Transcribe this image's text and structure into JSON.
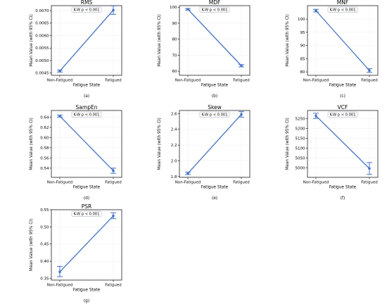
{
  "chart_data": [
    {
      "type": "line",
      "caption": "(a)",
      "title": "RMS",
      "xlabel": "Fatigue State",
      "ylabel": "Mean Value (with 95% CI)",
      "annotation": "K-W p < 0.001",
      "categories": [
        "Non-Fatigued",
        "Fatigued"
      ],
      "values": [
        0.00458,
        0.00702
      ],
      "ci_low": [
        0.00454,
        0.00685
      ],
      "ci_high": [
        0.00462,
        0.00719
      ],
      "ylim": [
        0.00441,
        0.0072
      ],
      "yticks": [
        0.0045,
        0.005,
        0.0055,
        0.006,
        0.0065,
        0.007
      ],
      "ytick_labels": [
        "0.0045",
        "0.0050",
        "0.0055",
        "0.0060",
        "0.0065",
        "0.0070"
      ],
      "grid": true
    },
    {
      "type": "line",
      "caption": "(b)",
      "title": "MDF",
      "xlabel": "Fatigue State",
      "ylabel": "Mean Value (with 95% CI)",
      "annotation": "K-W p < 0.001",
      "categories": [
        "Non-Fatigued",
        "Fatigued"
      ],
      "values": [
        98.7,
        63.4
      ],
      "ci_low": [
        98.2,
        62.7
      ],
      "ci_high": [
        99.2,
        64.1
      ],
      "ylim": [
        57.4,
        101
      ],
      "yticks": [
        60,
        70,
        80,
        90,
        100
      ],
      "ytick_labels": [
        "60",
        "70",
        "80",
        "90",
        "100"
      ],
      "grid": true
    },
    {
      "type": "line",
      "caption": "(c)",
      "title": "MNF",
      "xlabel": "Fatigue State",
      "ylabel": "Mean Value (with 95% CI)",
      "annotation": "K-W p < 0.001",
      "categories": [
        "Non-Fatigued",
        "Fatigued"
      ],
      "values": [
        103.2,
        80.5
      ],
      "ci_low": [
        102.7,
        79.8
      ],
      "ci_high": [
        103.7,
        81.2
      ],
      "ylim": [
        78.7,
        105.1
      ],
      "yticks": [
        80,
        85,
        90,
        95,
        100
      ],
      "ytick_labels": [
        "80",
        "85",
        "90",
        "95",
        "100"
      ],
      "grid": true
    },
    {
      "type": "line",
      "caption": "(d)",
      "title": "SampEn",
      "xlabel": "Fatigue State",
      "ylabel": "Mean Value (with 95% CI)",
      "annotation": "K-W p < 0.001",
      "categories": [
        "Non-Fatigued",
        "Fatigued"
      ],
      "values": [
        0.642,
        0.535
      ],
      "ci_low": [
        0.64,
        0.53
      ],
      "ci_high": [
        0.644,
        0.54
      ],
      "ylim": [
        0.522,
        0.653
      ],
      "yticks": [
        0.54,
        0.56,
        0.58,
        0.6,
        0.62,
        0.64
      ],
      "ytick_labels": [
        "0.54",
        "0.56",
        "0.58",
        "0.60",
        "0.62",
        "0.64"
      ],
      "grid": true
    },
    {
      "type": "line",
      "caption": "(e)",
      "title": "Skew",
      "xlabel": "Fatigue State",
      "ylabel": "Mean Value (with 95% CI)",
      "annotation": "K-W p < 0.001",
      "categories": [
        "Non-Fatigued",
        "Fatigued"
      ],
      "values": [
        1.84,
        2.59
      ],
      "ci_low": [
        1.825,
        2.555
      ],
      "ci_high": [
        1.855,
        2.625
      ],
      "ylim": [
        1.79,
        2.64
      ],
      "yticks": [
        1.8,
        2.0,
        2.2,
        2.4,
        2.6
      ],
      "ytick_labels": [
        "1.8",
        "2.0",
        "2.2",
        "2.4",
        "2.6"
      ],
      "grid": true
    },
    {
      "type": "line",
      "caption": "(f)",
      "title": "VCF",
      "xlabel": "Fatigue State",
      "ylabel": "Mean Value (with 95% CI)",
      "annotation": "K-W p < 0.001",
      "categories": [
        "Non-Fatigued",
        "Fatigued"
      ],
      "values": [
        5265,
        4997
      ],
      "ci_low": [
        5252,
        4967
      ],
      "ci_high": [
        5278,
        5027
      ],
      "ylim": [
        4952,
        5292
      ],
      "yticks": [
        5000,
        5050,
        5100,
        5150,
        5200,
        5250
      ],
      "ytick_labels": [
        "5000",
        "5050",
        "5100",
        "5150",
        "5200",
        "5250"
      ],
      "grid": true
    },
    {
      "type": "line",
      "caption": "(g)",
      "title": "PSR",
      "xlabel": "Fatigue State",
      "ylabel": "Mean Value (with 95% CI)",
      "annotation": "K-W p < 0.001",
      "categories": [
        "Non-Fatigued",
        "Fatigued"
      ],
      "values": [
        0.369,
        0.532
      ],
      "ci_low": [
        0.355,
        0.524
      ],
      "ci_high": [
        0.385,
        0.541
      ],
      "ylim": [
        0.345,
        0.55
      ],
      "yticks": [
        0.35,
        0.4,
        0.45,
        0.5,
        0.55
      ],
      "ytick_labels": [
        "0.35",
        "0.40",
        "0.45",
        "0.50",
        "0.55"
      ],
      "grid": true
    }
  ],
  "style": {
    "line_color": "#4472c4",
    "grid_color": "#e4e4e4",
    "frame_color": "#000000"
  }
}
